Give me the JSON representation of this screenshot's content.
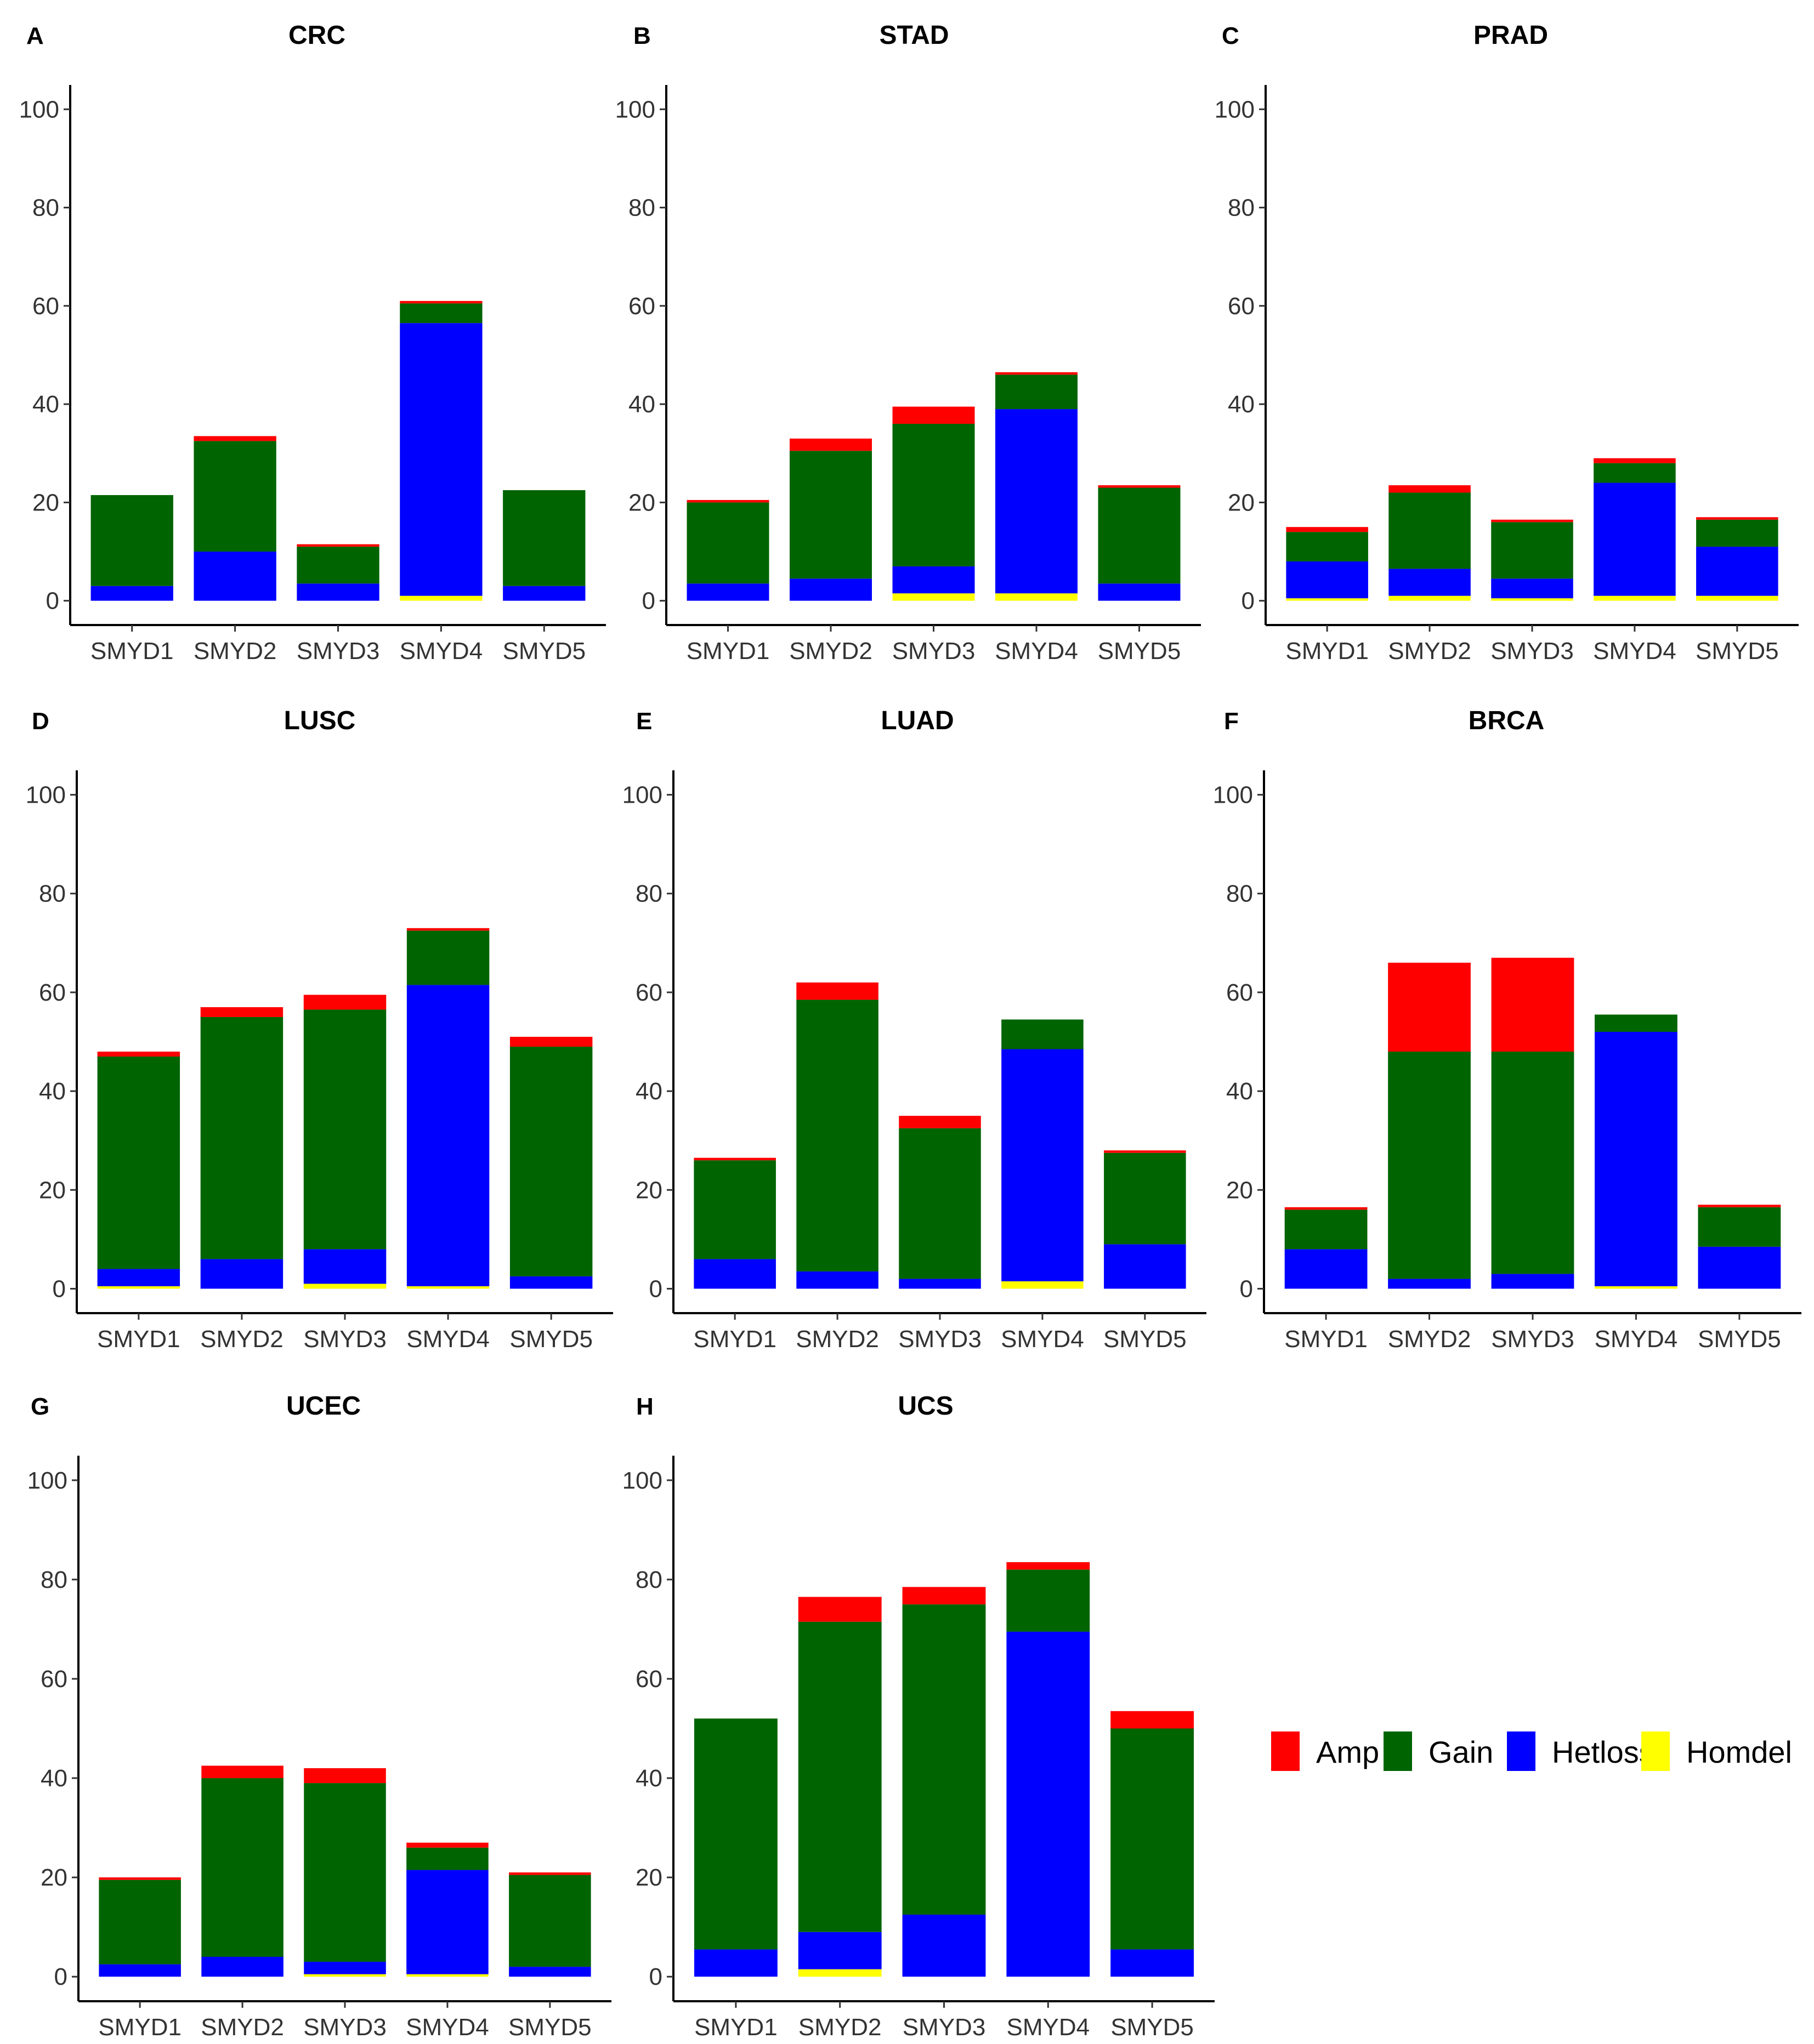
{
  "legend": {
    "entries": [
      {
        "name": "Amp",
        "color": "#FF0000"
      },
      {
        "name": "Gain",
        "color": "#006400"
      },
      {
        "name": "Hetloss",
        "color": "#0000FF"
      },
      {
        "name": "Homdel",
        "color": "#FFFF00"
      }
    ],
    "placement": "right of panel H"
  },
  "chart_data": [
    {
      "panel": "A",
      "title": "CRC",
      "type": "bar",
      "stacked": true,
      "categories": [
        "SMYD1",
        "SMYD2",
        "SMYD3",
        "SMYD4",
        "SMYD5"
      ],
      "ylim": [
        0,
        100
      ],
      "yticks": [
        0,
        20,
        40,
        60,
        80,
        100
      ],
      "grid": false,
      "series": [
        {
          "name": "Homdel",
          "values": [
            0,
            0,
            0,
            1,
            0
          ]
        },
        {
          "name": "Hetloss",
          "values": [
            3,
            10,
            3.5,
            55.5,
            3
          ]
        },
        {
          "name": "Gain",
          "values": [
            18.5,
            22.5,
            7.5,
            4,
            19.5
          ]
        },
        {
          "name": "Amp",
          "values": [
            0,
            1,
            0.5,
            0.5,
            0
          ]
        }
      ]
    },
    {
      "panel": "B",
      "title": "STAD",
      "type": "bar",
      "stacked": true,
      "categories": [
        "SMYD1",
        "SMYD2",
        "SMYD3",
        "SMYD4",
        "SMYD5"
      ],
      "ylim": [
        0,
        100
      ],
      "yticks": [
        0,
        20,
        40,
        60,
        80,
        100
      ],
      "grid": false,
      "series": [
        {
          "name": "Homdel",
          "values": [
            0,
            0,
            1.5,
            1.5,
            0
          ]
        },
        {
          "name": "Hetloss",
          "values": [
            3.5,
            4.5,
            5.5,
            37.5,
            3.5
          ]
        },
        {
          "name": "Gain",
          "values": [
            16.5,
            26,
            29,
            7,
            19.5
          ]
        },
        {
          "name": "Amp",
          "values": [
            0.5,
            2.5,
            3.5,
            0.5,
            0.5
          ]
        }
      ]
    },
    {
      "panel": "C",
      "title": "PRAD",
      "type": "bar",
      "stacked": true,
      "categories": [
        "SMYD1",
        "SMYD2",
        "SMYD3",
        "SMYD4",
        "SMYD5"
      ],
      "ylim": [
        0,
        100
      ],
      "yticks": [
        0,
        20,
        40,
        60,
        80,
        100
      ],
      "grid": false,
      "series": [
        {
          "name": "Homdel",
          "values": [
            0.5,
            1,
            0.5,
            1,
            1
          ]
        },
        {
          "name": "Hetloss",
          "values": [
            7.5,
            5.5,
            4,
            23,
            10
          ]
        },
        {
          "name": "Gain",
          "values": [
            6,
            15.5,
            11.5,
            4,
            5.5
          ]
        },
        {
          "name": "Amp",
          "values": [
            1,
            1.5,
            0.5,
            1,
            0.5
          ]
        }
      ]
    },
    {
      "panel": "D",
      "title": "LUSC",
      "type": "bar",
      "stacked": true,
      "categories": [
        "SMYD1",
        "SMYD2",
        "SMYD3",
        "SMYD4",
        "SMYD5"
      ],
      "ylim": [
        0,
        100
      ],
      "yticks": [
        0,
        20,
        40,
        60,
        80,
        100
      ],
      "grid": false,
      "series": [
        {
          "name": "Homdel",
          "values": [
            0.5,
            0,
            1,
            0.5,
            0
          ]
        },
        {
          "name": "Hetloss",
          "values": [
            3.5,
            6,
            7,
            61,
            2.5
          ]
        },
        {
          "name": "Gain",
          "values": [
            43,
            49,
            48.5,
            11,
            46.5
          ]
        },
        {
          "name": "Amp",
          "values": [
            1,
            2,
            3,
            0.5,
            2
          ]
        }
      ]
    },
    {
      "panel": "E",
      "title": "LUAD",
      "type": "bar",
      "stacked": true,
      "categories": [
        "SMYD1",
        "SMYD2",
        "SMYD3",
        "SMYD4",
        "SMYD5"
      ],
      "ylim": [
        0,
        100
      ],
      "yticks": [
        0,
        20,
        40,
        60,
        80,
        100
      ],
      "grid": false,
      "series": [
        {
          "name": "Homdel",
          "values": [
            0,
            0,
            0,
            1.5,
            0
          ]
        },
        {
          "name": "Hetloss",
          "values": [
            6,
            3.5,
            2,
            47,
            9
          ]
        },
        {
          "name": "Gain",
          "values": [
            20,
            55,
            30.5,
            6,
            18.5
          ]
        },
        {
          "name": "Amp",
          "values": [
            0.5,
            3.5,
            2.5,
            0,
            0.5
          ]
        }
      ]
    },
    {
      "panel": "F",
      "title": "BRCA",
      "type": "bar",
      "stacked": true,
      "categories": [
        "SMYD1",
        "SMYD2",
        "SMYD3",
        "SMYD4",
        "SMYD5"
      ],
      "ylim": [
        0,
        100
      ],
      "yticks": [
        0,
        20,
        40,
        60,
        80,
        100
      ],
      "grid": false,
      "series": [
        {
          "name": "Homdel",
          "values": [
            0,
            0,
            0,
            0.5,
            0
          ]
        },
        {
          "name": "Hetloss",
          "values": [
            8,
            2,
            3,
            51.5,
            8.5
          ]
        },
        {
          "name": "Gain",
          "values": [
            8,
            46,
            45,
            3.5,
            8
          ]
        },
        {
          "name": "Amp",
          "values": [
            0.5,
            18,
            19,
            0,
            0.5
          ]
        }
      ]
    },
    {
      "panel": "G",
      "title": "UCEC",
      "type": "bar",
      "stacked": true,
      "categories": [
        "SMYD1",
        "SMYD2",
        "SMYD3",
        "SMYD4",
        "SMYD5"
      ],
      "ylim": [
        0,
        100
      ],
      "yticks": [
        0,
        20,
        40,
        60,
        80,
        100
      ],
      "grid": false,
      "series": [
        {
          "name": "Homdel",
          "values": [
            0,
            0,
            0.5,
            0.5,
            0
          ]
        },
        {
          "name": "Hetloss",
          "values": [
            2.5,
            4,
            2.5,
            21,
            2
          ]
        },
        {
          "name": "Gain",
          "values": [
            17,
            36,
            36,
            4.5,
            18.5
          ]
        },
        {
          "name": "Amp",
          "values": [
            0.5,
            2.5,
            3,
            1,
            0.5
          ]
        }
      ]
    },
    {
      "panel": "H",
      "title": "UCS",
      "type": "bar",
      "stacked": true,
      "categories": [
        "SMYD1",
        "SMYD2",
        "SMYD3",
        "SMYD4",
        "SMYD5"
      ],
      "ylim": [
        0,
        100
      ],
      "yticks": [
        0,
        20,
        40,
        60,
        80,
        100
      ],
      "grid": false,
      "series": [
        {
          "name": "Homdel",
          "values": [
            0,
            1.5,
            0,
            0,
            0
          ]
        },
        {
          "name": "Hetloss",
          "values": [
            5.5,
            7.5,
            12.5,
            69.5,
            5.5
          ]
        },
        {
          "name": "Gain",
          "values": [
            46.5,
            62.5,
            62.5,
            12.5,
            44.5
          ]
        },
        {
          "name": "Amp",
          "values": [
            0,
            5,
            3.5,
            1.5,
            3.5
          ]
        }
      ]
    }
  ]
}
